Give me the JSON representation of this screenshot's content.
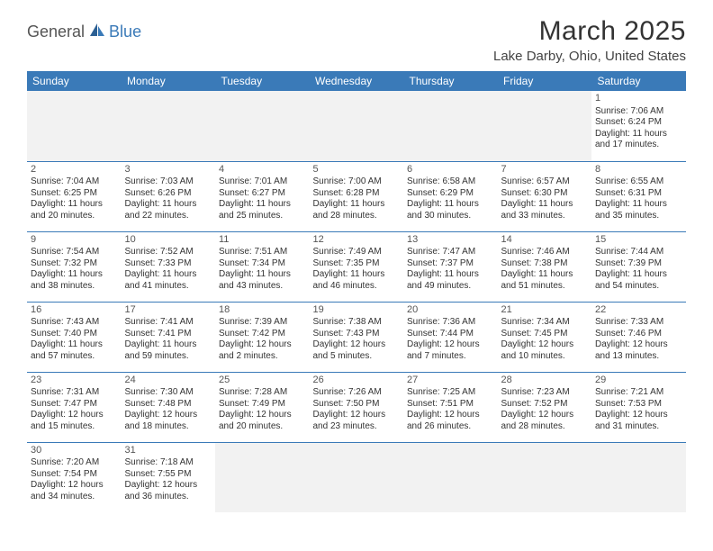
{
  "logo": {
    "part1": "General",
    "part2": "Blue"
  },
  "title": "March 2025",
  "location": "Lake Darby, Ohio, United States",
  "colors": {
    "header_bg": "#3a7ab8",
    "header_fg": "#ffffff",
    "border": "#3a7ab8",
    "empty_bg": "#f2f2f2",
    "text": "#333333",
    "logo_accent": "#3a7ab8",
    "logo_gray": "#555555",
    "page_bg": "#ffffff"
  },
  "typography": {
    "title_fontsize": 30,
    "location_fontsize": 15,
    "header_fontsize": 12,
    "cell_fontsize": 10,
    "daynum_fontsize": 11
  },
  "weekdays": [
    "Sunday",
    "Monday",
    "Tuesday",
    "Wednesday",
    "Thursday",
    "Friday",
    "Saturday"
  ],
  "weeks": [
    [
      null,
      null,
      null,
      null,
      null,
      null,
      {
        "d": "1",
        "sr": "Sunrise: 7:06 AM",
        "ss": "Sunset: 6:24 PM",
        "dl1": "Daylight: 11 hours",
        "dl2": "and 17 minutes."
      }
    ],
    [
      {
        "d": "2",
        "sr": "Sunrise: 7:04 AM",
        "ss": "Sunset: 6:25 PM",
        "dl1": "Daylight: 11 hours",
        "dl2": "and 20 minutes."
      },
      {
        "d": "3",
        "sr": "Sunrise: 7:03 AM",
        "ss": "Sunset: 6:26 PM",
        "dl1": "Daylight: 11 hours",
        "dl2": "and 22 minutes."
      },
      {
        "d": "4",
        "sr": "Sunrise: 7:01 AM",
        "ss": "Sunset: 6:27 PM",
        "dl1": "Daylight: 11 hours",
        "dl2": "and 25 minutes."
      },
      {
        "d": "5",
        "sr": "Sunrise: 7:00 AM",
        "ss": "Sunset: 6:28 PM",
        "dl1": "Daylight: 11 hours",
        "dl2": "and 28 minutes."
      },
      {
        "d": "6",
        "sr": "Sunrise: 6:58 AM",
        "ss": "Sunset: 6:29 PM",
        "dl1": "Daylight: 11 hours",
        "dl2": "and 30 minutes."
      },
      {
        "d": "7",
        "sr": "Sunrise: 6:57 AM",
        "ss": "Sunset: 6:30 PM",
        "dl1": "Daylight: 11 hours",
        "dl2": "and 33 minutes."
      },
      {
        "d": "8",
        "sr": "Sunrise: 6:55 AM",
        "ss": "Sunset: 6:31 PM",
        "dl1": "Daylight: 11 hours",
        "dl2": "and 35 minutes."
      }
    ],
    [
      {
        "d": "9",
        "sr": "Sunrise: 7:54 AM",
        "ss": "Sunset: 7:32 PM",
        "dl1": "Daylight: 11 hours",
        "dl2": "and 38 minutes."
      },
      {
        "d": "10",
        "sr": "Sunrise: 7:52 AM",
        "ss": "Sunset: 7:33 PM",
        "dl1": "Daylight: 11 hours",
        "dl2": "and 41 minutes."
      },
      {
        "d": "11",
        "sr": "Sunrise: 7:51 AM",
        "ss": "Sunset: 7:34 PM",
        "dl1": "Daylight: 11 hours",
        "dl2": "and 43 minutes."
      },
      {
        "d": "12",
        "sr": "Sunrise: 7:49 AM",
        "ss": "Sunset: 7:35 PM",
        "dl1": "Daylight: 11 hours",
        "dl2": "and 46 minutes."
      },
      {
        "d": "13",
        "sr": "Sunrise: 7:47 AM",
        "ss": "Sunset: 7:37 PM",
        "dl1": "Daylight: 11 hours",
        "dl2": "and 49 minutes."
      },
      {
        "d": "14",
        "sr": "Sunrise: 7:46 AM",
        "ss": "Sunset: 7:38 PM",
        "dl1": "Daylight: 11 hours",
        "dl2": "and 51 minutes."
      },
      {
        "d": "15",
        "sr": "Sunrise: 7:44 AM",
        "ss": "Sunset: 7:39 PM",
        "dl1": "Daylight: 11 hours",
        "dl2": "and 54 minutes."
      }
    ],
    [
      {
        "d": "16",
        "sr": "Sunrise: 7:43 AM",
        "ss": "Sunset: 7:40 PM",
        "dl1": "Daylight: 11 hours",
        "dl2": "and 57 minutes."
      },
      {
        "d": "17",
        "sr": "Sunrise: 7:41 AM",
        "ss": "Sunset: 7:41 PM",
        "dl1": "Daylight: 11 hours",
        "dl2": "and 59 minutes."
      },
      {
        "d": "18",
        "sr": "Sunrise: 7:39 AM",
        "ss": "Sunset: 7:42 PM",
        "dl1": "Daylight: 12 hours",
        "dl2": "and 2 minutes."
      },
      {
        "d": "19",
        "sr": "Sunrise: 7:38 AM",
        "ss": "Sunset: 7:43 PM",
        "dl1": "Daylight: 12 hours",
        "dl2": "and 5 minutes."
      },
      {
        "d": "20",
        "sr": "Sunrise: 7:36 AM",
        "ss": "Sunset: 7:44 PM",
        "dl1": "Daylight: 12 hours",
        "dl2": "and 7 minutes."
      },
      {
        "d": "21",
        "sr": "Sunrise: 7:34 AM",
        "ss": "Sunset: 7:45 PM",
        "dl1": "Daylight: 12 hours",
        "dl2": "and 10 minutes."
      },
      {
        "d": "22",
        "sr": "Sunrise: 7:33 AM",
        "ss": "Sunset: 7:46 PM",
        "dl1": "Daylight: 12 hours",
        "dl2": "and 13 minutes."
      }
    ],
    [
      {
        "d": "23",
        "sr": "Sunrise: 7:31 AM",
        "ss": "Sunset: 7:47 PM",
        "dl1": "Daylight: 12 hours",
        "dl2": "and 15 minutes."
      },
      {
        "d": "24",
        "sr": "Sunrise: 7:30 AM",
        "ss": "Sunset: 7:48 PM",
        "dl1": "Daylight: 12 hours",
        "dl2": "and 18 minutes."
      },
      {
        "d": "25",
        "sr": "Sunrise: 7:28 AM",
        "ss": "Sunset: 7:49 PM",
        "dl1": "Daylight: 12 hours",
        "dl2": "and 20 minutes."
      },
      {
        "d": "26",
        "sr": "Sunrise: 7:26 AM",
        "ss": "Sunset: 7:50 PM",
        "dl1": "Daylight: 12 hours",
        "dl2": "and 23 minutes."
      },
      {
        "d": "27",
        "sr": "Sunrise: 7:25 AM",
        "ss": "Sunset: 7:51 PM",
        "dl1": "Daylight: 12 hours",
        "dl2": "and 26 minutes."
      },
      {
        "d": "28",
        "sr": "Sunrise: 7:23 AM",
        "ss": "Sunset: 7:52 PM",
        "dl1": "Daylight: 12 hours",
        "dl2": "and 28 minutes."
      },
      {
        "d": "29",
        "sr": "Sunrise: 7:21 AM",
        "ss": "Sunset: 7:53 PM",
        "dl1": "Daylight: 12 hours",
        "dl2": "and 31 minutes."
      }
    ],
    [
      {
        "d": "30",
        "sr": "Sunrise: 7:20 AM",
        "ss": "Sunset: 7:54 PM",
        "dl1": "Daylight: 12 hours",
        "dl2": "and 34 minutes."
      },
      {
        "d": "31",
        "sr": "Sunrise: 7:18 AM",
        "ss": "Sunset: 7:55 PM",
        "dl1": "Daylight: 12 hours",
        "dl2": "and 36 minutes."
      },
      null,
      null,
      null,
      null,
      null
    ]
  ]
}
